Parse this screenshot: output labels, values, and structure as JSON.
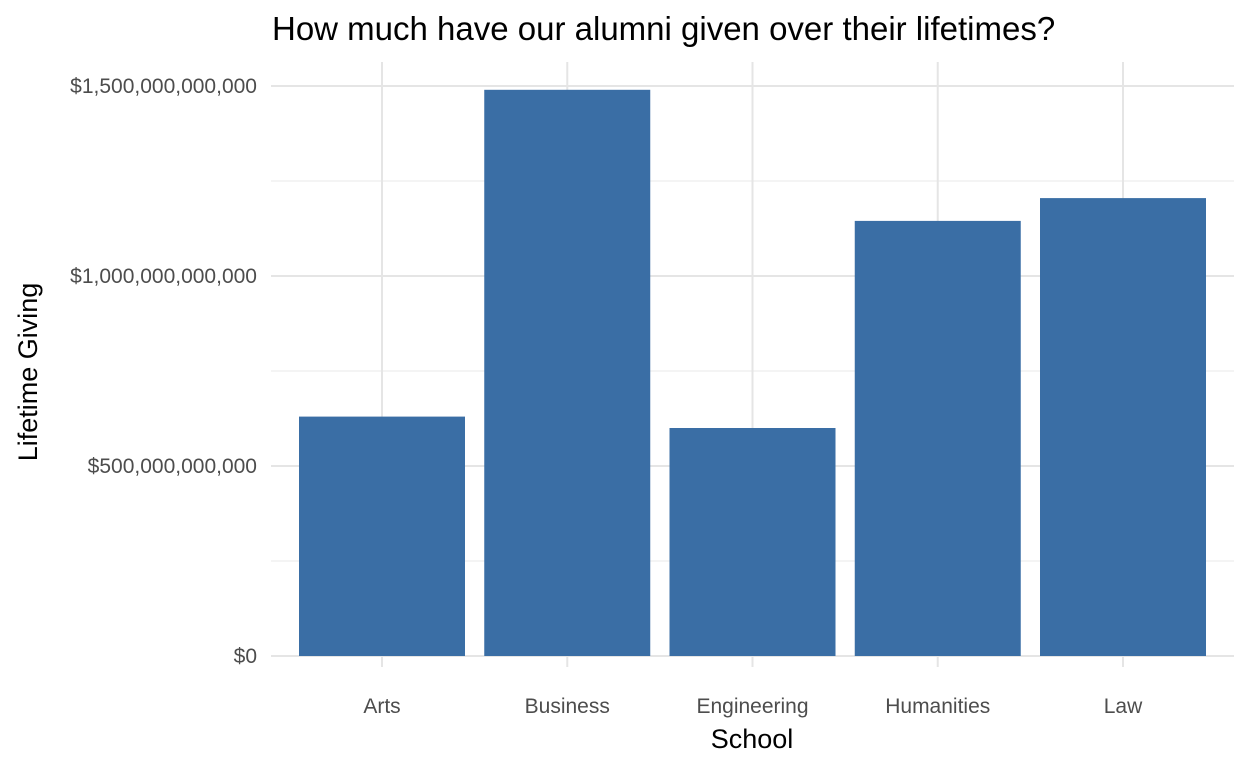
{
  "chart_data": {
    "type": "bar",
    "title": "How much have our alumni given over their lifetimes?",
    "xlabel": "School",
    "ylabel": "Lifetime Giving",
    "categories": [
      "Arts",
      "Business",
      "Engineering",
      "Humanities",
      "Law"
    ],
    "values": [
      630000000000,
      1490000000000,
      600000000000,
      1145000000000,
      1205000000000
    ],
    "ylim": [
      0,
      1500000000000
    ],
    "y_ticks": [
      0,
      500000000000,
      1000000000000,
      1500000000000
    ],
    "y_tick_labels": [
      "$0",
      "$500,000,000,000",
      "$1,000,000,000,000",
      "$1,500,000,000,000"
    ],
    "grid": true,
    "legend": "none",
    "colors": {
      "bar": "#3a6ea5"
    }
  }
}
